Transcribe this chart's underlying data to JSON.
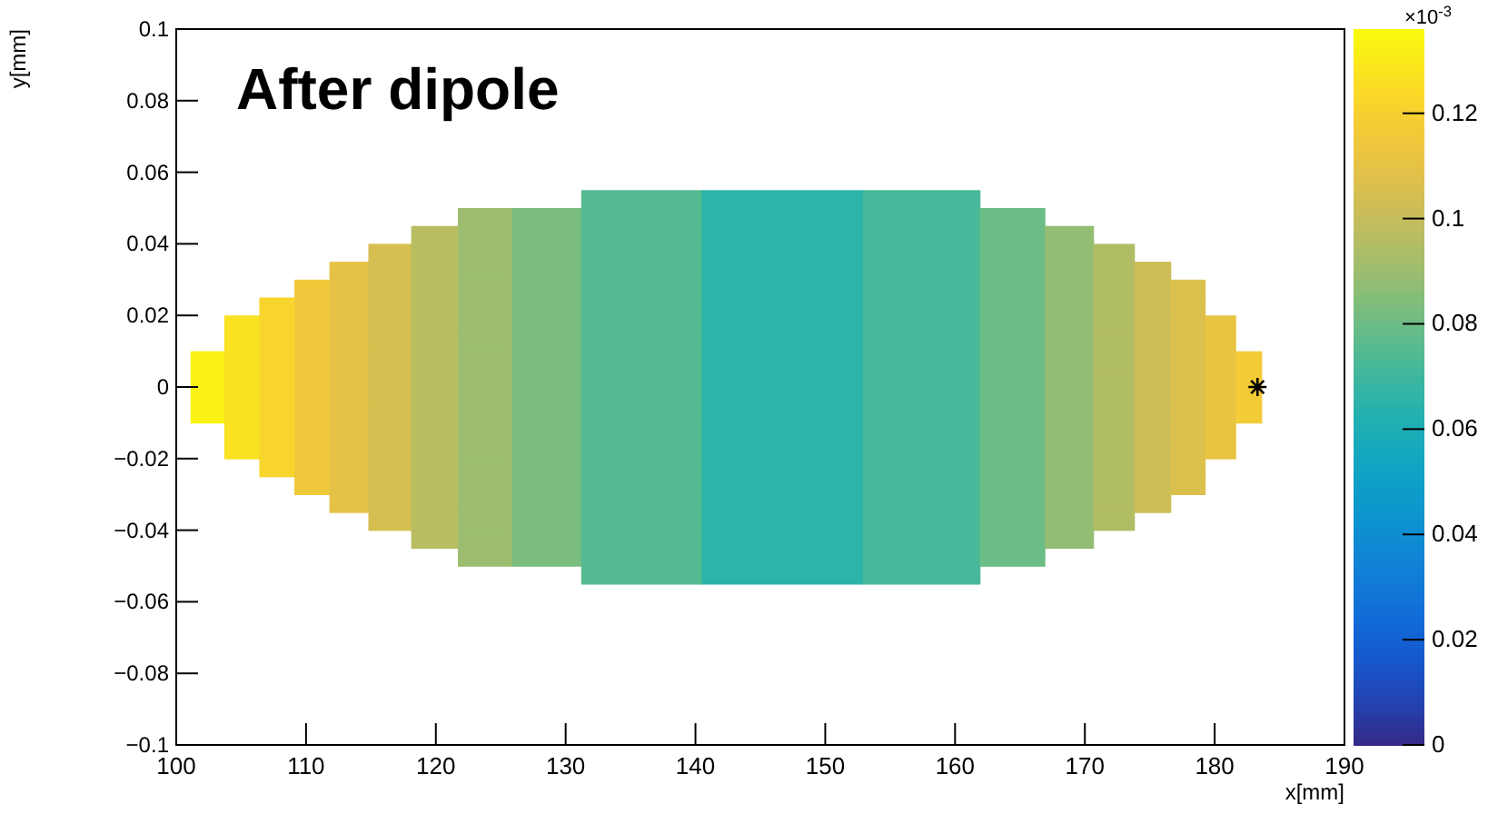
{
  "chart_data": {
    "type": "heatmap",
    "title": "After dipole",
    "xlabel": "x[mm]",
    "ylabel": "y[mm]",
    "clabel": "×10$^{-3}$",
    "x": [
      102.4,
      105,
      107.8,
      110.4,
      113.2,
      116.4,
      119.8,
      123.6,
      128.2,
      134.2,
      146.8,
      159,
      164.8,
      169,
      172.3,
      175.3,
      177.9,
      180.6,
      182.6
    ],
    "y": [
      0.0525,
      0.0475,
      0.0425,
      0.0375,
      0.0325,
      0.0275,
      0.0225,
      0.0175,
      0.0125,
      0.0075,
      0.0025,
      -0.0025,
      -0.0075,
      -0.0125,
      -0.0175,
      -0.0225,
      -0.0275,
      -0.0325,
      -0.0375,
      -0.0425,
      -0.0475,
      -0.0525
    ],
    "cells": [
      [
        null,
        null,
        null,
        null,
        null,
        null,
        null,
        null,
        null,
        0.075,
        0.065,
        0.072,
        null,
        null,
        null,
        null,
        null,
        null,
        null
      ],
      [
        null,
        null,
        null,
        null,
        null,
        null,
        null,
        0.09,
        0.083,
        0.075,
        0.065,
        0.072,
        0.08,
        null,
        null,
        null,
        null,
        null,
        null
      ],
      [
        null,
        null,
        null,
        null,
        null,
        null,
        0.097,
        0.09,
        0.083,
        0.075,
        0.065,
        0.072,
        0.08,
        0.088,
        null,
        null,
        null,
        null,
        null
      ],
      [
        null,
        null,
        null,
        null,
        null,
        0.105,
        0.097,
        0.09,
        0.083,
        0.075,
        0.065,
        0.072,
        0.08,
        0.088,
        0.095,
        null,
        null,
        null,
        null
      ],
      [
        null,
        null,
        null,
        null,
        0.11,
        0.105,
        0.097,
        0.09,
        0.083,
        0.075,
        0.065,
        0.072,
        0.08,
        0.088,
        0.095,
        0.102,
        null,
        null,
        null
      ],
      [
        null,
        null,
        null,
        0.115,
        0.11,
        0.105,
        0.097,
        0.09,
        0.083,
        0.075,
        0.065,
        0.072,
        0.08,
        0.088,
        0.095,
        0.102,
        0.107,
        null,
        null
      ],
      [
        null,
        null,
        0.122,
        0.115,
        0.11,
        0.105,
        0.097,
        0.09,
        0.083,
        0.075,
        0.065,
        0.072,
        0.08,
        0.088,
        0.095,
        0.102,
        0.107,
        null,
        null
      ],
      [
        null,
        0.127,
        0.122,
        0.115,
        0.11,
        0.105,
        0.097,
        0.09,
        0.083,
        0.075,
        0.065,
        0.072,
        0.08,
        0.088,
        0.095,
        0.102,
        0.107,
        0.112,
        null
      ],
      [
        null,
        0.127,
        0.122,
        0.115,
        0.11,
        0.105,
        0.097,
        0.09,
        0.083,
        0.075,
        0.065,
        0.072,
        0.08,
        0.088,
        0.095,
        0.102,
        0.107,
        0.112,
        null
      ],
      [
        0.133,
        0.127,
        0.122,
        0.115,
        0.11,
        0.105,
        0.097,
        0.09,
        0.083,
        0.075,
        0.065,
        0.072,
        0.08,
        0.088,
        0.095,
        0.102,
        0.107,
        0.112,
        0.117
      ],
      [
        0.133,
        0.127,
        0.122,
        0.115,
        0.11,
        0.105,
        0.097,
        0.09,
        0.083,
        0.075,
        0.065,
        0.072,
        0.08,
        0.088,
        0.095,
        0.102,
        0.107,
        0.112,
        0.117
      ],
      [
        0.133,
        0.127,
        0.122,
        0.115,
        0.11,
        0.105,
        0.097,
        0.09,
        0.083,
        0.075,
        0.065,
        0.072,
        0.08,
        0.088,
        0.095,
        0.102,
        0.107,
        0.112,
        0.117
      ],
      [
        0.133,
        0.127,
        0.122,
        0.115,
        0.11,
        0.105,
        0.097,
        0.09,
        0.083,
        0.075,
        0.065,
        0.072,
        0.08,
        0.088,
        0.095,
        0.102,
        0.107,
        0.112,
        0.117
      ],
      [
        null,
        0.127,
        0.122,
        0.115,
        0.11,
        0.105,
        0.097,
        0.09,
        0.083,
        0.075,
        0.065,
        0.072,
        0.08,
        0.088,
        0.095,
        0.102,
        0.107,
        0.112,
        null
      ],
      [
        null,
        0.127,
        0.122,
        0.115,
        0.11,
        0.105,
        0.097,
        0.09,
        0.083,
        0.075,
        0.065,
        0.072,
        0.08,
        0.088,
        0.095,
        0.102,
        0.107,
        0.112,
        null
      ],
      [
        null,
        null,
        0.122,
        0.115,
        0.11,
        0.105,
        0.097,
        0.09,
        0.083,
        0.075,
        0.065,
        0.072,
        0.08,
        0.088,
        0.095,
        0.102,
        0.107,
        null,
        null
      ],
      [
        null,
        null,
        null,
        0.115,
        0.11,
        0.105,
        0.097,
        0.09,
        0.083,
        0.075,
        0.065,
        0.072,
        0.08,
        0.088,
        0.095,
        0.102,
        0.107,
        null,
        null
      ],
      [
        null,
        null,
        null,
        null,
        0.11,
        0.105,
        0.097,
        0.09,
        0.083,
        0.075,
        0.065,
        0.072,
        0.08,
        0.088,
        0.095,
        0.102,
        null,
        null,
        null
      ],
      [
        null,
        null,
        null,
        null,
        null,
        0.105,
        0.097,
        0.09,
        0.083,
        0.075,
        0.065,
        0.072,
        0.08,
        0.088,
        0.095,
        null,
        null,
        null,
        null
      ],
      [
        null,
        null,
        null,
        null,
        null,
        null,
        0.097,
        0.09,
        0.083,
        0.075,
        0.065,
        0.072,
        0.08,
        0.088,
        null,
        null,
        null,
        null,
        null
      ],
      [
        null,
        null,
        null,
        null,
        null,
        null,
        null,
        0.09,
        0.083,
        0.075,
        0.065,
        0.072,
        0.08,
        null,
        null,
        null,
        null,
        null,
        null
      ],
      [
        null,
        null,
        null,
        null,
        null,
        null,
        null,
        null,
        null,
        0.075,
        0.065,
        0.072,
        null,
        null,
        null,
        null,
        null,
        null,
        null
      ]
    ],
    "series": [
      {
        "type": "scatter",
        "x": [
          183.3
        ],
        "values": [
          0
        ],
        "color": "#000000",
        "marker": "cross"
      }
    ],
    "xlim": [
      100,
      190
    ],
    "xticks": [
      100,
      110,
      120,
      130,
      140,
      150,
      160,
      170,
      180,
      190
    ],
    "ylim": [
      -0.1,
      0.1
    ],
    "yticks": [
      {
        "value": -0.1,
        "label": "−0.1"
      },
      {
        "value": -0.08,
        "label": "−0.08"
      },
      {
        "value": -0.06,
        "label": "−0.06"
      },
      {
        "value": -0.04,
        "label": "−0.04"
      },
      {
        "value": -0.02,
        "label": "−0.02"
      },
      0,
      0.02,
      0.04,
      0.06,
      0.08,
      0.1
    ],
    "clim": [
      0,
      0.136
    ],
    "cticks": [
      0,
      0.02,
      0.04,
      0.06,
      0.08,
      0.1,
      0.12
    ]
  }
}
